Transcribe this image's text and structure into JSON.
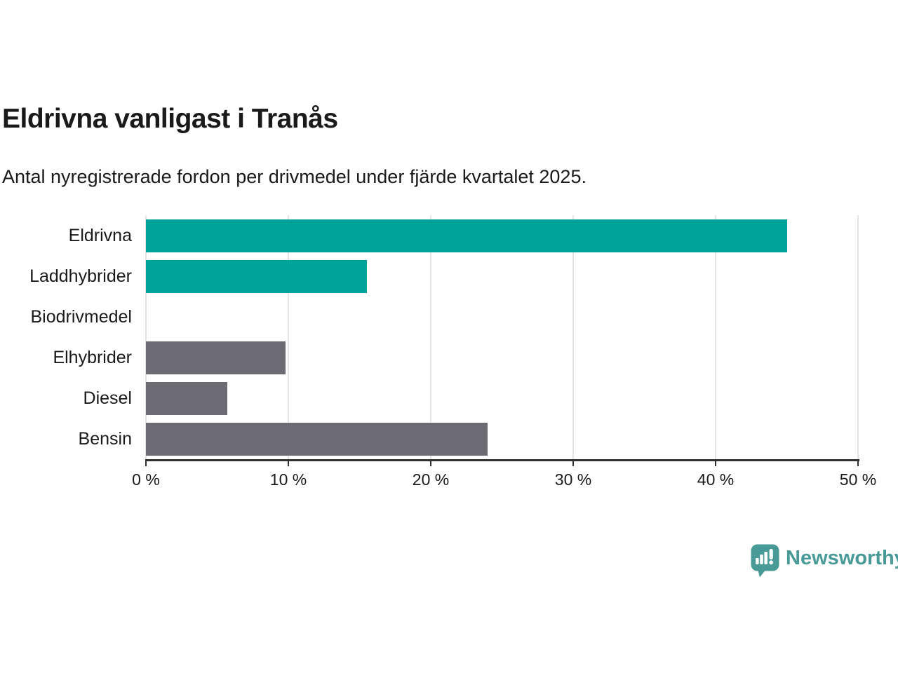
{
  "title": "Eldrivna vanligast i Tranås",
  "subtitle": "Antal nyregistrerade fordon per drivmedel under fjärde kvartalet 2025.",
  "chart_data": {
    "type": "bar",
    "orientation": "horizontal",
    "title": "Eldrivna vanligast i Tranås",
    "subtitle": "Antal nyregistrerade fordon per drivmedel under fjärde kvartalet 2025.",
    "categories": [
      "Eldrivna",
      "Laddhybrider",
      "Biodrivmedel",
      "Elhybrider",
      "Diesel",
      "Bensin"
    ],
    "values": [
      45,
      15.5,
      0,
      9.8,
      5.7,
      24
    ],
    "unit": "%",
    "xlim": [
      0,
      50
    ],
    "xticks": [
      0,
      10,
      20,
      30,
      40,
      50
    ],
    "xtick_labels": [
      "0 %",
      "10 %",
      "20 %",
      "30 %",
      "40 %",
      "50 %"
    ],
    "grid": true,
    "legend": false,
    "bar_colors": [
      "#00a39a",
      "#00a39a",
      "#6c6b73",
      "#6c6b73",
      "#6c6b73",
      "#6c6b73"
    ]
  },
  "colors": {
    "teal": "#00a39a",
    "gray": "#6c6b73",
    "text": "#1a1a1a",
    "axis": "#2f2f2f",
    "gridline": "#e4e4e4",
    "logo_teal": "#489a97"
  },
  "logo": {
    "text": "Newsworthy",
    "icon": "newsworthy-chart-bubble-icon"
  }
}
